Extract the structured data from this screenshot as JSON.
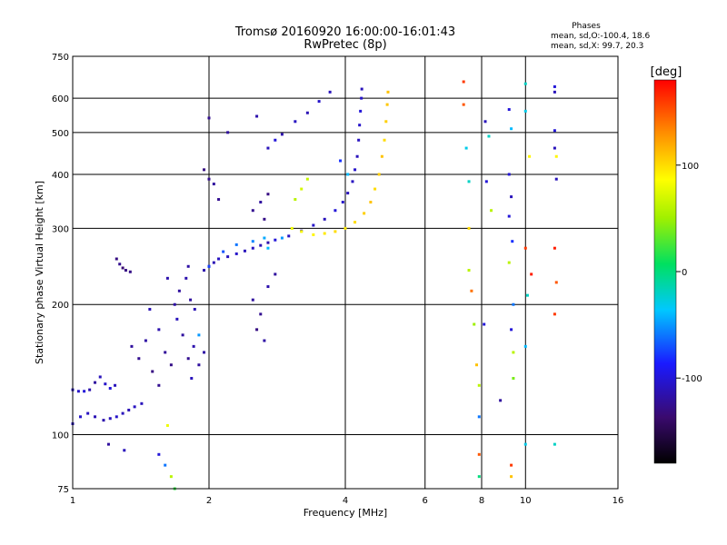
{
  "header": {
    "title_line1": "Tromsø 20160920 16:00:00-16:01:43",
    "title_line2": "RwPretec (8p)"
  },
  "stats": {
    "heading": "Phases",
    "line1": "mean, sd,O:-100.4, 18.6",
    "line2": "mean, sd,X:  99.7, 20.3"
  },
  "chart_data": {
    "type": "scatter",
    "title": "Tromsø 20160920 16:00:00-16:01:43",
    "subtitle": "RwPretec (8p)",
    "xlabel": "Frequency [MHz]",
    "ylabel": "Stationary phase Virtual Height [km]",
    "x_scale": "log2",
    "y_scale": "log",
    "xlim": [
      1,
      16
    ],
    "ylim": [
      75,
      750
    ],
    "x_ticks": [
      1,
      2,
      4,
      6,
      8,
      10,
      16
    ],
    "x_tick_labels": [
      "1",
      "2",
      "4",
      "6",
      "8",
      "10",
      "16"
    ],
    "y_ticks": [
      75,
      100,
      200,
      300,
      400,
      500,
      600,
      750
    ],
    "y_tick_labels": [
      "75",
      "100",
      "200",
      "300",
      "400",
      "500",
      "600",
      "750"
    ],
    "grid_x": [
      2,
      4,
      6,
      8,
      10
    ],
    "grid_y": [
      100,
      200,
      300,
      400,
      500,
      600
    ],
    "colorbar": {
      "label": "[deg]",
      "range": [
        -180,
        180
      ],
      "ticks": [
        100,
        0,
        -100
      ],
      "tick_labels": [
        "100",
        "0",
        "-100"
      ]
    },
    "series": [
      {
        "values": [
          [
            1.0,
            127,
            -110
          ],
          [
            1.03,
            126,
            -105
          ],
          [
            1.06,
            126,
            -100
          ],
          [
            1.09,
            127,
            -115
          ],
          [
            1.12,
            132,
            -120
          ],
          [
            1.15,
            136,
            -110
          ],
          [
            1.18,
            131,
            -105
          ],
          [
            1.21,
            128,
            -100
          ],
          [
            1.24,
            130,
            -110
          ],
          [
            1.0,
            106,
            -110
          ],
          [
            1.04,
            110,
            -105
          ],
          [
            1.08,
            112,
            -108
          ],
          [
            1.12,
            110,
            -112
          ],
          [
            1.17,
            108,
            -115
          ],
          [
            1.21,
            109,
            -110
          ],
          [
            1.25,
            110,
            -105
          ],
          [
            1.29,
            112,
            -110
          ],
          [
            1.33,
            114,
            -112
          ],
          [
            1.37,
            116,
            -108
          ],
          [
            1.42,
            118,
            -110
          ],
          [
            1.25,
            255,
            -130
          ],
          [
            1.27,
            248,
            -125
          ],
          [
            1.29,
            243,
            -135
          ],
          [
            1.31,
            240,
            -130
          ],
          [
            1.34,
            238,
            -128
          ],
          [
            1.35,
            160,
            -120
          ],
          [
            1.4,
            150,
            -125
          ],
          [
            1.45,
            165,
            -118
          ],
          [
            1.5,
            140,
            -130
          ],
          [
            1.55,
            175,
            -115
          ],
          [
            1.6,
            155,
            -122
          ],
          [
            1.65,
            145,
            -128
          ],
          [
            1.7,
            185,
            -110
          ],
          [
            1.75,
            170,
            -120
          ],
          [
            1.8,
            150,
            -125
          ],
          [
            1.85,
            160,
            -115
          ],
          [
            1.9,
            145,
            -120
          ],
          [
            1.95,
            155,
            -118
          ],
          [
            1.48,
            195,
            -112
          ],
          [
            1.62,
            230,
            -115
          ],
          [
            1.72,
            215,
            -120
          ],
          [
            1.55,
            130,
            -125
          ],
          [
            1.83,
            135,
            -110
          ],
          [
            1.68,
            200,
            -118
          ],
          [
            1.9,
            170,
            -50
          ],
          [
            1.78,
            230,
            -115
          ],
          [
            1.82,
            205,
            -120
          ],
          [
            1.86,
            195,
            -112
          ],
          [
            1.8,
            245,
            -118
          ],
          [
            1.95,
            240,
            -115
          ],
          [
            2.0,
            245,
            -110
          ],
          [
            2.05,
            250,
            -112
          ],
          [
            2.1,
            255,
            -108
          ],
          [
            2.2,
            258,
            -110
          ],
          [
            2.3,
            262,
            -105
          ],
          [
            2.4,
            266,
            -110
          ],
          [
            2.5,
            270,
            -108
          ],
          [
            2.6,
            274,
            -112
          ],
          [
            2.7,
            278,
            -115
          ],
          [
            2.8,
            282,
            -100
          ],
          [
            3.0,
            288,
            -108
          ],
          [
            3.2,
            296,
            -112
          ],
          [
            3.4,
            305,
            -105
          ],
          [
            3.6,
            315,
            -110
          ],
          [
            3.8,
            330,
            -100
          ],
          [
            3.95,
            345,
            -105
          ],
          [
            4.05,
            362,
            -110
          ],
          [
            4.15,
            385,
            -108
          ],
          [
            4.2,
            410,
            -105
          ],
          [
            4.25,
            440,
            -110
          ],
          [
            4.28,
            480,
            -108
          ],
          [
            4.3,
            520,
            -105
          ],
          [
            4.32,
            560,
            -100
          ],
          [
            4.34,
            600,
            -105
          ],
          [
            4.35,
            630,
            -110
          ],
          [
            2.0,
            245,
            -75
          ],
          [
            2.15,
            265,
            -70
          ],
          [
            2.3,
            275,
            -60
          ],
          [
            2.5,
            280,
            -55
          ],
          [
            2.7,
            270,
            -40
          ],
          [
            2.9,
            285,
            -50
          ],
          [
            2.65,
            285,
            -45
          ],
          [
            3.05,
            300,
            80
          ],
          [
            3.2,
            295,
            85
          ],
          [
            3.4,
            290,
            90
          ],
          [
            3.6,
            292,
            95
          ],
          [
            3.8,
            295,
            100
          ],
          [
            4.0,
            300,
            95
          ],
          [
            4.2,
            310,
            100
          ],
          [
            4.4,
            325,
            105
          ],
          [
            4.55,
            345,
            110
          ],
          [
            4.65,
            370,
            100
          ],
          [
            4.75,
            400,
            105
          ],
          [
            4.82,
            440,
            110
          ],
          [
            4.88,
            480,
            100
          ],
          [
            4.92,
            530,
            105
          ],
          [
            4.95,
            580,
            108
          ],
          [
            4.97,
            620,
            110
          ],
          [
            2.5,
            330,
            -125
          ],
          [
            2.6,
            345,
            -120
          ],
          [
            2.7,
            360,
            -130
          ],
          [
            2.65,
            315,
            -128
          ],
          [
            2.0,
            390,
            -125
          ],
          [
            1.95,
            410,
            -130
          ],
          [
            2.05,
            380,
            -120
          ],
          [
            2.1,
            350,
            -125
          ],
          [
            2.7,
            460,
            -110
          ],
          [
            2.9,
            495,
            -115
          ],
          [
            3.1,
            530,
            -108
          ],
          [
            3.3,
            555,
            -112
          ],
          [
            3.5,
            590,
            -105
          ],
          [
            3.7,
            620,
            -110
          ],
          [
            2.8,
            480,
            -100
          ],
          [
            2.55,
            545,
            -115
          ],
          [
            2.2,
            500,
            -120
          ],
          [
            2.0,
            540,
            -125
          ],
          [
            2.5,
            205,
            -120
          ],
          [
            2.6,
            190,
            -125
          ],
          [
            2.7,
            220,
            -115
          ],
          [
            2.8,
            235,
            -120
          ],
          [
            2.55,
            175,
            -130
          ],
          [
            2.65,
            165,
            -118
          ],
          [
            3.1,
            350,
            60
          ],
          [
            3.2,
            370,
            70
          ],
          [
            3.3,
            390,
            65
          ],
          [
            3.9,
            430,
            -80
          ],
          [
            4.05,
            400,
            -40
          ],
          [
            1.2,
            95,
            -120
          ],
          [
            1.3,
            92,
            -110
          ],
          [
            1.55,
            90,
            -100
          ],
          [
            1.6,
            85,
            -60
          ],
          [
            1.65,
            80,
            60
          ],
          [
            1.68,
            75,
            20
          ],
          [
            1.62,
            105,
            80
          ],
          [
            7.3,
            655,
            160
          ],
          [
            7.3,
            580,
            150
          ],
          [
            7.4,
            460,
            -30
          ],
          [
            7.5,
            385,
            -20
          ],
          [
            7.5,
            300,
            100
          ],
          [
            7.5,
            240,
            60
          ],
          [
            7.6,
            215,
            140
          ],
          [
            7.7,
            180,
            50
          ],
          [
            7.8,
            145,
            110
          ],
          [
            7.9,
            130,
            60
          ],
          [
            7.9,
            110,
            -60
          ],
          [
            7.9,
            90,
            150
          ],
          [
            7.9,
            80,
            0
          ],
          [
            8.15,
            530,
            -110
          ],
          [
            8.3,
            490,
            -20
          ],
          [
            8.2,
            385,
            -100
          ],
          [
            8.4,
            330,
            60
          ],
          [
            8.1,
            180,
            -100
          ],
          [
            8.8,
            120,
            -120
          ],
          [
            9.2,
            565,
            -100
          ],
          [
            9.3,
            510,
            -40
          ],
          [
            9.2,
            400,
            -100
          ],
          [
            9.3,
            355,
            -110
          ],
          [
            9.2,
            320,
            -100
          ],
          [
            9.35,
            280,
            -80
          ],
          [
            9.2,
            250,
            60
          ],
          [
            9.4,
            200,
            -60
          ],
          [
            9.3,
            175,
            -100
          ],
          [
            9.4,
            155,
            60
          ],
          [
            9.4,
            135,
            40
          ],
          [
            9.3,
            85,
            160
          ],
          [
            9.3,
            80,
            110
          ],
          [
            10.0,
            648,
            -20
          ],
          [
            10.0,
            560,
            -30
          ],
          [
            10.2,
            440,
            90
          ],
          [
            10.0,
            270,
            160
          ],
          [
            10.3,
            235,
            170
          ],
          [
            10.1,
            210,
            -20
          ],
          [
            10.0,
            160,
            -40
          ],
          [
            10.0,
            95,
            -30
          ],
          [
            11.6,
            638,
            -100
          ],
          [
            11.6,
            620,
            -110
          ],
          [
            11.6,
            505,
            -100
          ],
          [
            11.6,
            460,
            -110
          ],
          [
            11.7,
            440,
            90
          ],
          [
            11.7,
            390,
            -110
          ],
          [
            11.6,
            270,
            170
          ],
          [
            11.7,
            225,
            150
          ],
          [
            11.6,
            190,
            160
          ],
          [
            11.6,
            95,
            -20
          ]
        ]
      }
    ]
  }
}
